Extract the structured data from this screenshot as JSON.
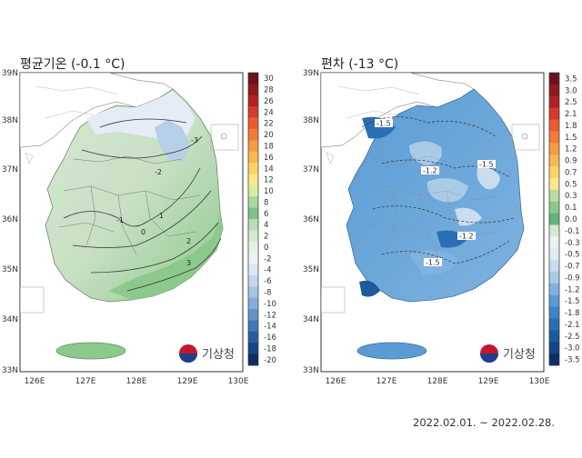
{
  "left_panel": {
    "title": "평균기온 (-0.1 °C)",
    "colorbar_labels": [
      "30",
      "28",
      "26",
      "24",
      "22",
      "20",
      "18",
      "16",
      "14",
      "12",
      "10",
      "8",
      "6",
      "4",
      "2",
      "0",
      "-2",
      "-4",
      "-6",
      "-8",
      "-10",
      "-12",
      "-14",
      "-16",
      "-18",
      "-20"
    ],
    "contour_labels": [
      "-3",
      "-2",
      "-1",
      "0",
      "1",
      "2",
      "3",
      "-1"
    ],
    "logo_text": "기상청"
  },
  "right_panel": {
    "title": "편차 (-13 °C)",
    "colorbar_labels": [
      "3.5",
      "3.0",
      "2.5",
      "2.1",
      "1.8",
      "1.5",
      "1.2",
      "0.9",
      "0.7",
      "0.5",
      "0.3",
      "0.1",
      "0.0",
      "-0.1",
      "-0.3",
      "-0.5",
      "-0.7",
      "-0.9",
      "-1.2",
      "-1.5",
      "-1.8",
      "-2.1",
      "-2.5",
      "-3.0",
      "-3.5"
    ],
    "contour_labels": [
      "-1.5",
      "-1.2",
      "-1.5",
      "-1.2",
      "-1.5"
    ],
    "logo_text": "기상청"
  },
  "axes": {
    "x_ticks": [
      "126E",
      "127E",
      "128E",
      "129E",
      "130E"
    ],
    "y_ticks": [
      "39N",
      "38N",
      "37N",
      "36N",
      "35N",
      "34N",
      "33N"
    ]
  },
  "period": "2022.02.01. ~ 2022.02.28.",
  "colors": {
    "left_colorbar": [
      "#6b1020",
      "#8e1a1a",
      "#b22222",
      "#d63a2a",
      "#e85c30",
      "#f07a3a",
      "#f59b45",
      "#f8b850",
      "#fad466",
      "#fbe68a",
      "#d8eda0",
      "#a6d8a0",
      "#7cc28a",
      "#b9dcb8",
      "#d6e9d2",
      "#e8f1e4",
      "#eef1f6",
      "#dce7f3",
      "#c3d7ec",
      "#a6c4e4",
      "#86aed9",
      "#6393c9",
      "#4278b6",
      "#2a5ea0",
      "#1a4583",
      "#0d2e63"
    ],
    "right_colorbar": [
      "#6b1020",
      "#8e1a1a",
      "#b22222",
      "#d63a2a",
      "#e85c30",
      "#f07a3a",
      "#f59b45",
      "#f8b850",
      "#fad466",
      "#fbe68a",
      "#b8dca0",
      "#8cc98c",
      "#5fb57a",
      "#d6e9d2",
      "#eaf3ee",
      "#dfeaf5",
      "#c9ddef",
      "#a9cbe8",
      "#7fb3df",
      "#5a9bd4",
      "#3d85c8",
      "#2a6fb5",
      "#1c5a9d",
      "#124684",
      "#0b3065"
    ]
  }
}
